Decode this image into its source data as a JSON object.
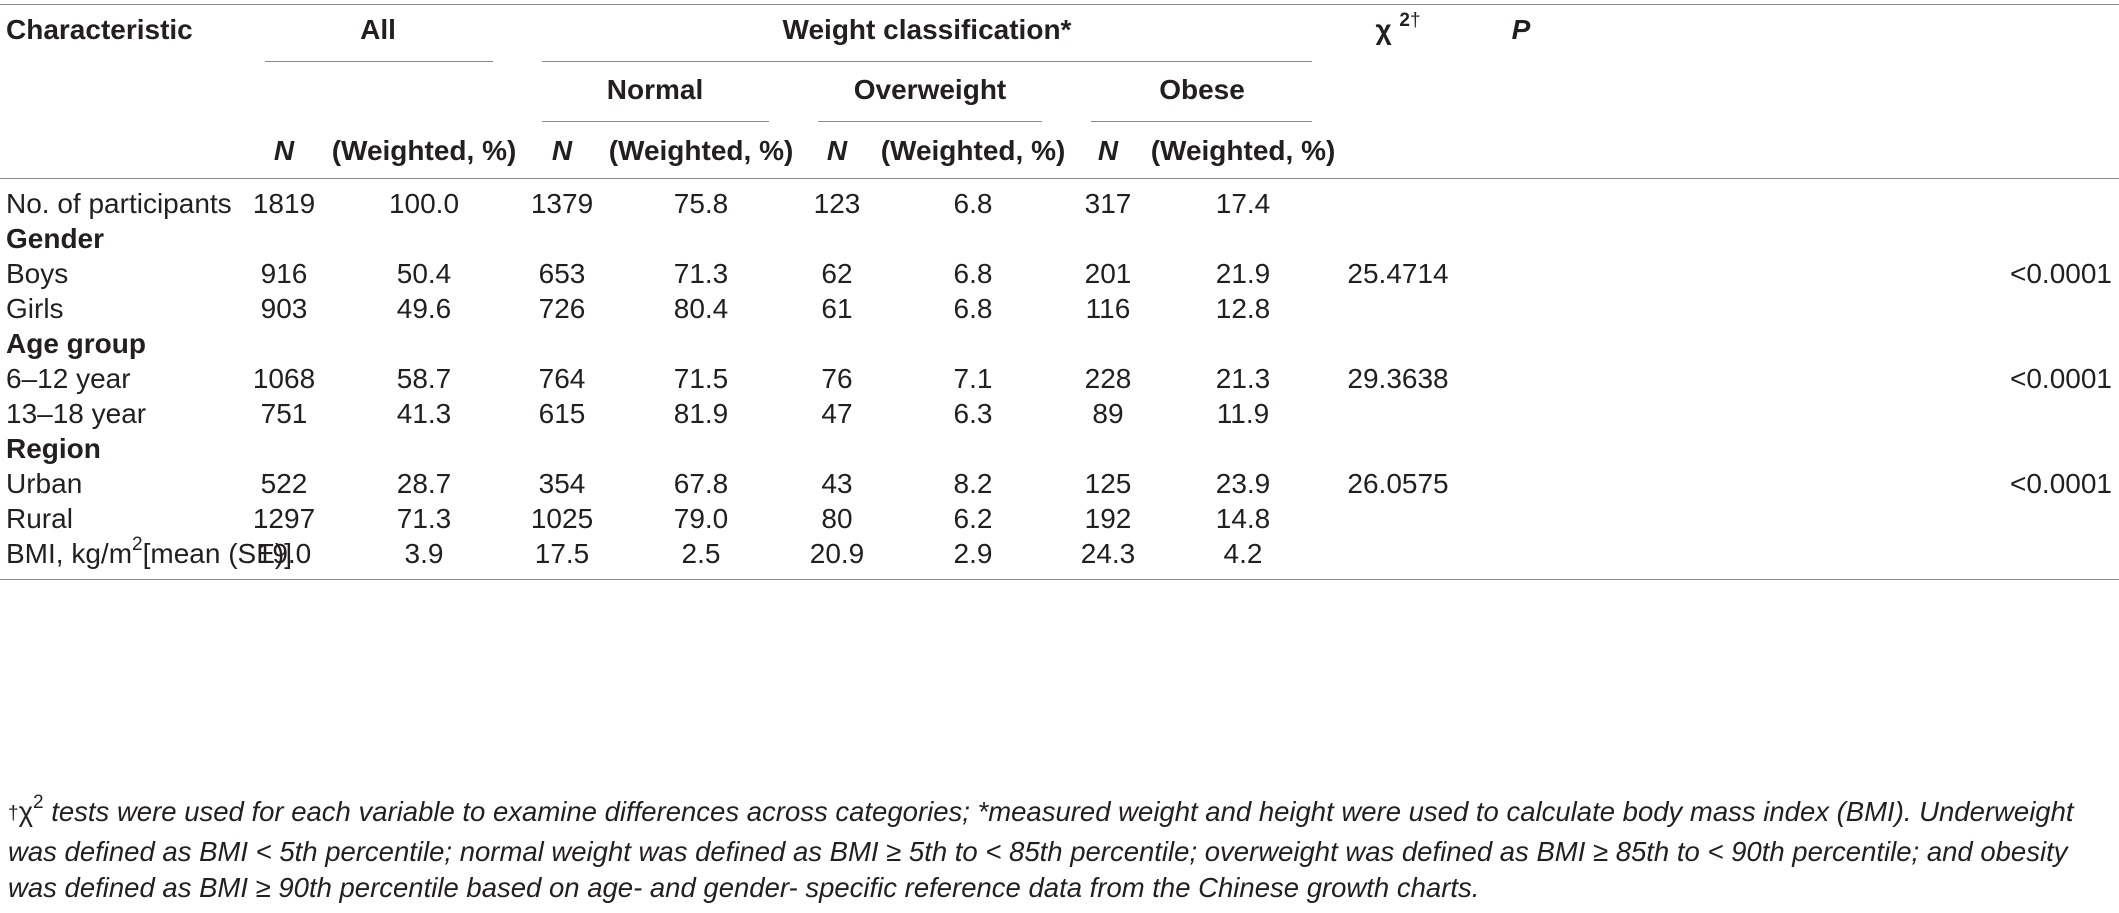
{
  "header": {
    "characteristic": "Characteristic",
    "all": "All",
    "weight_classification": "Weight classification*",
    "chi_symbol": "χ",
    "chi_sup": "2",
    "chi_dagger": "†",
    "p": "P",
    "normal": "Normal",
    "overweight": "Overweight",
    "obese": "Obese",
    "n": "N",
    "weighted": "(Weighted, %)"
  },
  "rows": [
    {
      "label": "No. of participants",
      "vals": [
        "1819",
        "100.0",
        "1379",
        "75.8",
        "123",
        "6.8",
        "317",
        "17.4"
      ],
      "chi": "",
      "p": ""
    },
    {
      "section": "Gender"
    },
    {
      "label": "Boys",
      "vals": [
        "916",
        "50.4",
        "653",
        "71.3",
        "62",
        "6.8",
        "201",
        "21.9"
      ],
      "chi": "25.4714",
      "p": "<0.0001"
    },
    {
      "label": "Girls",
      "vals": [
        "903",
        "49.6",
        "726",
        "80.4",
        "61",
        "6.8",
        "116",
        "12.8"
      ],
      "chi": "",
      "p": ""
    },
    {
      "section": "Age group"
    },
    {
      "label": "6–12 year",
      "vals": [
        "1068",
        "58.7",
        "764",
        "71.5",
        "76",
        "7.1",
        "228",
        "21.3"
      ],
      "chi": "29.3638",
      "p": "<0.0001"
    },
    {
      "label": "13–18 year",
      "vals": [
        "751",
        "41.3",
        "615",
        "81.9",
        "47",
        "6.3",
        "89",
        "11.9"
      ],
      "chi": "",
      "p": ""
    },
    {
      "section": "Region"
    },
    {
      "label": "Urban",
      "vals": [
        "522",
        "28.7",
        "354",
        "67.8",
        "43",
        "8.2",
        "125",
        "23.9"
      ],
      "chi": "26.0575",
      "p": "<0.0001"
    },
    {
      "label": "Rural",
      "vals": [
        "1297",
        "71.3",
        "1025",
        "79.0",
        "80",
        "6.2",
        "192",
        "14.8"
      ],
      "chi": "",
      "p": ""
    },
    {
      "label_pre": "BMI, kg/m",
      "label_sup": "2",
      "label_post": "[mean (SE)]",
      "vals": [
        "19.0",
        "3.9",
        "17.5",
        "2.5",
        "20.9",
        "2.9",
        "24.3",
        "4.2"
      ],
      "chi": "",
      "p": ""
    }
  ],
  "footnote": {
    "dagger": "†",
    "chi_symbol": "χ",
    "chi_sup": "2",
    "text": " tests were used for each variable to examine differences across categories; *measured weight and height were used to calculate body mass index (BMI). Underweight was defined as BMI < 5th percentile; normal weight was defined as BMI ≥ 5th to < 85th percentile; overweight was defined as BMI ≥ 85th to < 90th percentile; and obesity was defined as BMI ≥ 90th percentile based on age- and gender- specific reference data from the Chinese growth charts."
  }
}
